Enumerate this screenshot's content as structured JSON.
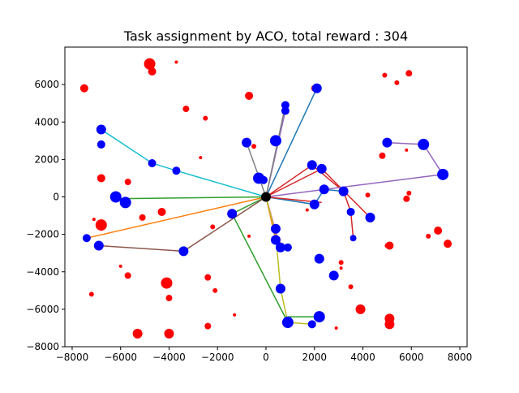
{
  "chart_data": {
    "type": "scatter",
    "title": "Task assignment by ACO, total reward : 304",
    "xlabel": "",
    "ylabel": "",
    "xlim": [
      -8300,
      8300
    ],
    "ylim": [
      -8000,
      8000
    ],
    "xticks": [
      -8000,
      -6000,
      -4000,
      -2000,
      0,
      2000,
      4000,
      6000,
      8000
    ],
    "yticks": [
      -8000,
      -6000,
      -4000,
      -2000,
      0,
      2000,
      4000,
      6000
    ],
    "grid": false,
    "legend": "none",
    "depot": {
      "x": 0,
      "y": 0,
      "color": "#000000"
    },
    "colors": {
      "assigned_task": "#0000ff",
      "unassigned_task": "#ff0000",
      "depot": "#000000"
    },
    "unassigned_tasks": [
      {
        "x": -7500,
        "y": 5800,
        "s": 5
      },
      {
        "x": -4800,
        "y": 7100,
        "s": 7
      },
      {
        "x": -4700,
        "y": 6700,
        "s": 5
      },
      {
        "x": -3700,
        "y": 7200,
        "s": 2
      },
      {
        "x": -3300,
        "y": 4700,
        "s": 4
      },
      {
        "x": -2500,
        "y": 4200,
        "s": 3
      },
      {
        "x": -2700,
        "y": 2100,
        "s": 2
      },
      {
        "x": -700,
        "y": 5400,
        "s": 5
      },
      {
        "x": -500,
        "y": 2700,
        "s": 3
      },
      {
        "x": 2000,
        "y": 5800,
        "s": 4
      },
      {
        "x": 4900,
        "y": 6500,
        "s": 3
      },
      {
        "x": 5400,
        "y": 6100,
        "s": 3
      },
      {
        "x": 5900,
        "y": 6600,
        "s": 4
      },
      {
        "x": 4800,
        "y": 2200,
        "s": 4
      },
      {
        "x": 5800,
        "y": 2500,
        "s": 2
      },
      {
        "x": 5900,
        "y": 200,
        "s": 3
      },
      {
        "x": 5800,
        "y": -100,
        "s": 4
      },
      {
        "x": 4200,
        "y": 100,
        "s": 3
      },
      {
        "x": 7100,
        "y": -1800,
        "s": 5
      },
      {
        "x": 6700,
        "y": -2100,
        "s": 3
      },
      {
        "x": 7500,
        "y": -2500,
        "s": 5
      },
      {
        "x": 5100,
        "y": -2600,
        "s": 5
      },
      {
        "x": 5000,
        "y": -2600,
        "s": 3
      },
      {
        "x": -6800,
        "y": 1000,
        "s": 5
      },
      {
        "x": -5700,
        "y": 800,
        "s": 4
      },
      {
        "x": -7100,
        "y": -1200,
        "s": 2
      },
      {
        "x": -6800,
        "y": -1500,
        "s": 7
      },
      {
        "x": -5100,
        "y": -1100,
        "s": 4
      },
      {
        "x": -4300,
        "y": -800,
        "s": 5
      },
      {
        "x": -2200,
        "y": -1600,
        "s": 3
      },
      {
        "x": -700,
        "y": -2100,
        "s": 2
      },
      {
        "x": -6000,
        "y": -3700,
        "s": 2
      },
      {
        "x": -5700,
        "y": -4200,
        "s": 4
      },
      {
        "x": -7200,
        "y": -5200,
        "s": 3
      },
      {
        "x": -4100,
        "y": -4600,
        "s": 7
      },
      {
        "x": -4000,
        "y": -5400,
        "s": 4
      },
      {
        "x": -2400,
        "y": -4300,
        "s": 4
      },
      {
        "x": -2100,
        "y": -5000,
        "s": 3
      },
      {
        "x": -5300,
        "y": -7300,
        "s": 6
      },
      {
        "x": -4000,
        "y": -7300,
        "s": 6
      },
      {
        "x": -2400,
        "y": -6900,
        "s": 4
      },
      {
        "x": -1300,
        "y": -6300,
        "s": 2
      },
      {
        "x": 1700,
        "y": -700,
        "s": 2
      },
      {
        "x": 3100,
        "y": -3800,
        "s": 2
      },
      {
        "x": 3500,
        "y": -4800,
        "s": 3
      },
      {
        "x": 3100,
        "y": -3500,
        "s": 3
      },
      {
        "x": 3900,
        "y": -6000,
        "s": 6
      },
      {
        "x": 2900,
        "y": -7000,
        "s": 2
      },
      {
        "x": 5100,
        "y": -6500,
        "s": 6
      },
      {
        "x": 5100,
        "y": -6800,
        "s": 6
      }
    ],
    "assigned_tasks": [
      {
        "x": 800,
        "y": 4900,
        "s": 5
      },
      {
        "x": 800,
        "y": 4600,
        "s": 5
      },
      {
        "x": 2100,
        "y": 5800,
        "s": 6
      },
      {
        "x": -800,
        "y": 2900,
        "s": 6
      },
      {
        "x": 400,
        "y": 3000,
        "s": 7
      },
      {
        "x": -300,
        "y": 1000,
        "s": 7
      },
      {
        "x": -100,
        "y": 900,
        "s": 5
      },
      {
        "x": 1900,
        "y": 1700,
        "s": 6
      },
      {
        "x": 2300,
        "y": 1500,
        "s": 6
      },
      {
        "x": 2400,
        "y": 400,
        "s": 6
      },
      {
        "x": 3200,
        "y": 300,
        "s": 6
      },
      {
        "x": 2000,
        "y": -400,
        "s": 6
      },
      {
        "x": 3500,
        "y": -800,
        "s": 5
      },
      {
        "x": 4300,
        "y": -1100,
        "s": 6
      },
      {
        "x": 3600,
        "y": -2200,
        "s": 4
      },
      {
        "x": 5000,
        "y": 2900,
        "s": 6
      },
      {
        "x": 6500,
        "y": 2800,
        "s": 7
      },
      {
        "x": 7300,
        "y": 1200,
        "s": 7
      },
      {
        "x": -6800,
        "y": 3600,
        "s": 6
      },
      {
        "x": -6800,
        "y": 2800,
        "s": 5
      },
      {
        "x": -4700,
        "y": 1800,
        "s": 5
      },
      {
        "x": -3700,
        "y": 1400,
        "s": 5
      },
      {
        "x": -6200,
        "y": 0,
        "s": 7
      },
      {
        "x": -5800,
        "y": -300,
        "s": 7
      },
      {
        "x": -7400,
        "y": -2200,
        "s": 5
      },
      {
        "x": -6900,
        "y": -2600,
        "s": 6
      },
      {
        "x": -3400,
        "y": -2900,
        "s": 6
      },
      {
        "x": -1400,
        "y": -900,
        "s": 6
      },
      {
        "x": 400,
        "y": -1700,
        "s": 6
      },
      {
        "x": 400,
        "y": -2300,
        "s": 6
      },
      {
        "x": 600,
        "y": -2700,
        "s": 6
      },
      {
        "x": 900,
        "y": -2700,
        "s": 5
      },
      {
        "x": 2200,
        "y": -3300,
        "s": 6
      },
      {
        "x": 2800,
        "y": -4200,
        "s": 6
      },
      {
        "x": 600,
        "y": -4900,
        "s": 6
      },
      {
        "x": 900,
        "y": -6700,
        "s": 7
      },
      {
        "x": 1900,
        "y": -6800,
        "s": 5
      },
      {
        "x": 2200,
        "y": -6400,
        "s": 7
      }
    ],
    "routes": [
      {
        "color": "#1f77b4",
        "points": [
          [
            0,
            0
          ],
          [
            2100,
            5800
          ]
        ]
      },
      {
        "color": "#1f77b4",
        "points": [
          [
            0,
            0
          ],
          [
            2000,
            -400
          ],
          [
            2400,
            400
          ],
          [
            3200,
            300
          ]
        ]
      },
      {
        "color": "#ff7f0e",
        "points": [
          [
            0,
            0
          ],
          [
            -7400,
            -2200
          ]
        ]
      },
      {
        "color": "#ff7f0e",
        "points": [
          [
            0,
            0
          ],
          [
            400,
            -2300
          ],
          [
            900,
            -2700
          ]
        ]
      },
      {
        "color": "#2ca02c",
        "points": [
          [
            0,
            0
          ],
          [
            -6200,
            -100
          ],
          [
            -5800,
            -300
          ]
        ]
      },
      {
        "color": "#2ca02c",
        "points": [
          [
            0,
            0
          ],
          [
            -1400,
            -900
          ],
          [
            900,
            -6700
          ],
          [
            900,
            -6400
          ],
          [
            2200,
            -6400
          ]
        ]
      },
      {
        "color": "#d62728",
        "points": [
          [
            0,
            0
          ],
          [
            1900,
            1700
          ],
          [
            3200,
            300
          ],
          [
            3500,
            -800
          ],
          [
            3600,
            -2200
          ]
        ]
      },
      {
        "color": "#d62728",
        "points": [
          [
            0,
            0
          ],
          [
            2300,
            1500
          ],
          [
            4300,
            -1100
          ]
        ]
      },
      {
        "color": "#d62728",
        "points": [
          [
            0,
            0
          ],
          [
            2300,
            -300
          ]
        ]
      },
      {
        "color": "#9467bd",
        "points": [
          [
            0,
            0
          ],
          [
            7300,
            1200
          ],
          [
            6500,
            2800
          ],
          [
            5000,
            2900
          ]
        ]
      },
      {
        "color": "#9467bd",
        "points": [
          [
            0,
            0
          ],
          [
            800,
            4600
          ]
        ]
      },
      {
        "color": "#8c564b",
        "points": [
          [
            0,
            0
          ],
          [
            -3400,
            -2900
          ],
          [
            -6900,
            -2600
          ]
        ]
      },
      {
        "color": "#e377c2",
        "points": [
          [
            0,
            0
          ],
          [
            600,
            -2700
          ]
        ]
      },
      {
        "color": "#7f7f7f",
        "points": [
          [
            0,
            0
          ],
          [
            -800,
            2900
          ]
        ]
      },
      {
        "color": "#7f7f7f",
        "points": [
          [
            0,
            0
          ],
          [
            800,
            4900
          ]
        ]
      },
      {
        "color": "#bcbd22",
        "points": [
          [
            0,
            0
          ],
          [
            400,
            -2000
          ],
          [
            600,
            -4900
          ],
          [
            900,
            -6700
          ],
          [
            1900,
            -6800
          ]
        ]
      },
      {
        "color": "#17becf",
        "points": [
          [
            0,
            0
          ],
          [
            -3700,
            1400
          ],
          [
            -4700,
            1800
          ],
          [
            -6800,
            3600
          ]
        ]
      }
    ]
  }
}
